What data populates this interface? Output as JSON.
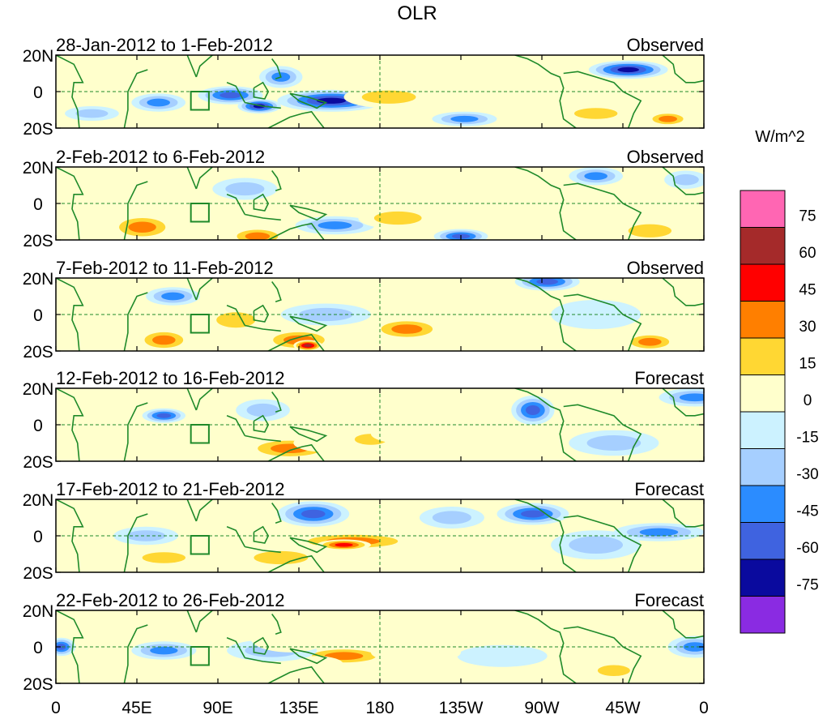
{
  "chart_data": {
    "type": "heatmap",
    "title": "OLR",
    "units": "W/m^2",
    "x_ticks": [
      "0",
      "45E",
      "90E",
      "135E",
      "180",
      "135W",
      "90W",
      "45W",
      "0"
    ],
    "x_range_deg_east": [
      0,
      360
    ],
    "y_ticks": [
      "20N",
      "0",
      "20S"
    ],
    "y_range_deg": [
      -20,
      20
    ],
    "colorbar": {
      "labels": [
        "75",
        "60",
        "45",
        "30",
        "15",
        "0",
        "-15",
        "-30",
        "-45",
        "-60",
        "-75"
      ],
      "levels": [
        75,
        60,
        45,
        30,
        15,
        0,
        -15,
        -30,
        -45,
        -60,
        -75
      ],
      "colors": [
        "#ff66b3",
        "#a52a2a",
        "#ff0000",
        "#ff7f00",
        "#ffd733",
        "#ffffcc",
        "#ccf2ff",
        "#a6cfff",
        "#2b8cff",
        "#3f63e0",
        "#0a0a9e",
        "#8a2be2"
      ]
    },
    "panels": [
      {
        "period": "28-Jan-2012 to 1-Feb-2012",
        "kind": "Observed"
      },
      {
        "period": "2-Feb-2012 to 6-Feb-2012",
        "kind": "Observed"
      },
      {
        "period": "7-Feb-2012 to 11-Feb-2012",
        "kind": "Observed"
      },
      {
        "period": "12-Feb-2012 to 16-Feb-2012",
        "kind": "Forecast"
      },
      {
        "period": "17-Feb-2012 to 21-Feb-2012",
        "kind": "Forecast"
      },
      {
        "period": "22-Feb-2012 to 26-Feb-2012",
        "kind": "Forecast"
      }
    ],
    "anomaly_blobs": [
      [
        [
          57,
          -6,
          15,
          5,
          -45
        ],
        [
          97,
          -2,
          18,
          5,
          -60
        ],
        [
          113,
          -8,
          12,
          4,
          -75
        ],
        [
          125,
          8,
          12,
          6,
          -45
        ],
        [
          153,
          -5,
          30,
          6,
          -75
        ],
        [
          185,
          -3,
          25,
          6,
          30
        ],
        [
          165,
          5,
          15,
          5,
          15
        ],
        [
          227,
          -15,
          18,
          4,
          -45
        ],
        [
          318,
          12,
          22,
          5,
          -75
        ],
        [
          300,
          -12,
          20,
          5,
          30
        ],
        [
          340,
          -15,
          12,
          4,
          45
        ],
        [
          20,
          -12,
          15,
          4,
          -30
        ]
      ],
      [
        [
          48,
          -13,
          18,
          7,
          45
        ],
        [
          112,
          -18,
          16,
          5,
          45
        ],
        [
          155,
          -12,
          22,
          5,
          -45
        ],
        [
          205,
          8,
          35,
          9,
          15
        ],
        [
          190,
          -8,
          22,
          6,
          30
        ],
        [
          225,
          -18,
          15,
          4,
          -60
        ],
        [
          105,
          8,
          18,
          6,
          -30
        ],
        [
          300,
          15,
          15,
          5,
          -45
        ],
        [
          350,
          13,
          12,
          5,
          -30
        ],
        [
          330,
          -15,
          20,
          6,
          30
        ],
        [
          20,
          5,
          18,
          6,
          15
        ]
      ],
      [
        [
          135,
          -14,
          20,
          6,
          45
        ],
        [
          140,
          -17,
          8,
          3,
          75
        ],
        [
          100,
          -3,
          18,
          7,
          30
        ],
        [
          195,
          -8,
          20,
          6,
          45
        ],
        [
          200,
          15,
          25,
          6,
          15
        ],
        [
          273,
          18,
          18,
          5,
          -60
        ],
        [
          330,
          -15,
          15,
          5,
          45
        ],
        [
          60,
          -14,
          15,
          6,
          45
        ],
        [
          65,
          10,
          15,
          5,
          -45
        ],
        [
          150,
          0,
          25,
          6,
          -30
        ],
        [
          300,
          0,
          25,
          8,
          -15
        ]
      ],
      [
        [
          130,
          -13,
          25,
          6,
          45
        ],
        [
          150,
          -10,
          18,
          5,
          15
        ],
        [
          175,
          -8,
          15,
          5,
          30
        ],
        [
          265,
          8,
          12,
          8,
          -60
        ],
        [
          310,
          -10,
          25,
          7,
          -30
        ],
        [
          355,
          15,
          20,
          5,
          -45
        ],
        [
          115,
          8,
          15,
          6,
          -30
        ],
        [
          70,
          -10,
          18,
          5,
          15
        ],
        [
          60,
          5,
          12,
          4,
          -60
        ],
        [
          200,
          -5,
          25,
          6,
          15
        ]
      ],
      [
        [
          165,
          -3,
          35,
          5,
          45
        ],
        [
          160,
          -5,
          15,
          3,
          60
        ],
        [
          125,
          -12,
          25,
          6,
          30
        ],
        [
          60,
          -12,
          20,
          5,
          30
        ],
        [
          143,
          12,
          20,
          7,
          -60
        ],
        [
          265,
          12,
          20,
          6,
          -60
        ],
        [
          335,
          2,
          25,
          5,
          -45
        ],
        [
          220,
          10,
          18,
          6,
          -30
        ],
        [
          300,
          -5,
          25,
          8,
          -30
        ],
        [
          50,
          0,
          18,
          5,
          -30
        ]
      ],
      [
        [
          160,
          -5,
          25,
          5,
          45
        ],
        [
          145,
          -10,
          15,
          5,
          15
        ],
        [
          60,
          -2,
          18,
          5,
          -45
        ],
        [
          120,
          -2,
          25,
          6,
          -30
        ],
        [
          248,
          -5,
          25,
          6,
          -15
        ],
        [
          130,
          5,
          22,
          8,
          15
        ],
        [
          310,
          -13,
          15,
          5,
          30
        ],
        [
          355,
          0,
          15,
          6,
          -45
        ],
        [
          3,
          0,
          8,
          5,
          -60
        ],
        [
          200,
          -3,
          25,
          6,
          15
        ]
      ]
    ]
  }
}
